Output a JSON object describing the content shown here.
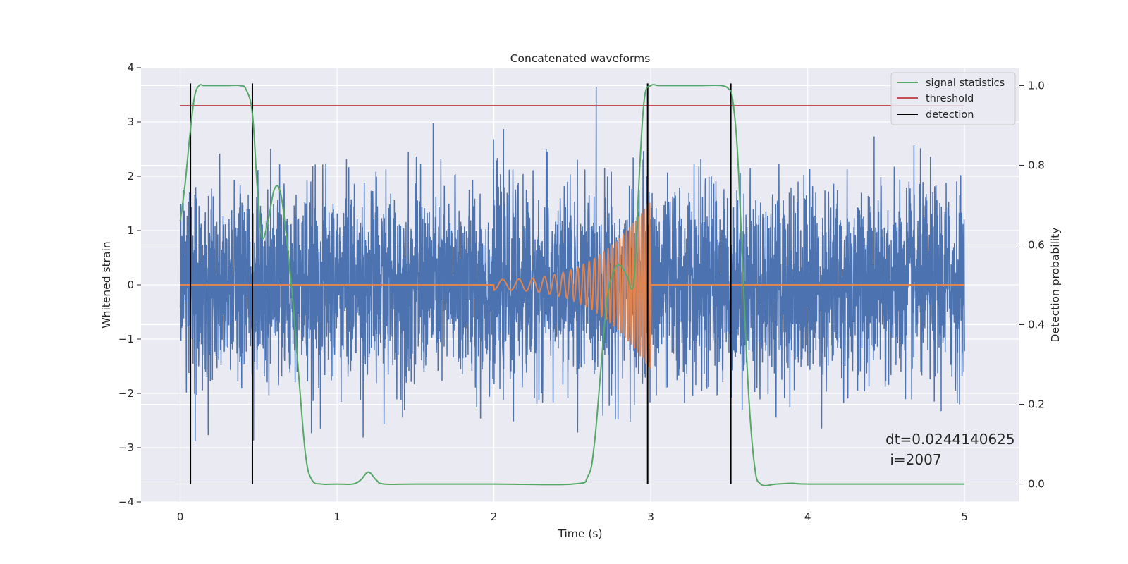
{
  "chart_data": {
    "type": "line",
    "title": "Concatenated waveforms",
    "xlabel": "Time (s)",
    "ylabel": "Whitened strain",
    "y2label": "Detection probability",
    "xlim": [
      -0.25,
      5.35
    ],
    "ylim": [
      -4.0,
      4.0
    ],
    "y2lim": [
      -0.045,
      1.045
    ],
    "xticks": [
      0,
      1,
      2,
      3,
      4,
      5
    ],
    "yticks": [
      -4,
      -3,
      -2,
      -1,
      0,
      1,
      2,
      3,
      4
    ],
    "y2ticks": [
      0.0,
      0.2,
      0.4,
      0.6,
      0.8,
      1.0
    ],
    "grid": true,
    "legend_position": "top-right",
    "legend": [
      {
        "label": "signal statistics",
        "color": "#55a868"
      },
      {
        "label": "threshold",
        "color": "#c44e52"
      },
      {
        "label": "detection",
        "color": "#000000"
      }
    ],
    "series": [
      {
        "kind": "noise",
        "axis": "left",
        "color": "#4c72b0",
        "x_range": [
          0,
          5
        ],
        "std": 0.9,
        "max": 3.65,
        "min": -3.7
      },
      {
        "kind": "chirp",
        "axis": "left",
        "color": "#dd8452",
        "x_range": [
          0,
          5
        ],
        "chirp_start": 2.0,
        "chirp_end": 3.0,
        "start_amplitude": 0.1,
        "peak_amplitude": 1.6
      },
      {
        "name": "signal statistics",
        "axis": "right",
        "color": "#55a868",
        "x": [
          0.0,
          0.03,
          0.06,
          0.09,
          0.12,
          0.15,
          0.2,
          0.3,
          0.38,
          0.42,
          0.46,
          0.49,
          0.52,
          0.56,
          0.6,
          0.64,
          0.68,
          0.72,
          0.76,
          0.8,
          0.84,
          0.9,
          1.0,
          1.1,
          1.15,
          1.2,
          1.25,
          1.3,
          1.5,
          2.0,
          2.5,
          2.6,
          2.64,
          2.68,
          2.72,
          2.76,
          2.8,
          2.85,
          2.88,
          2.9,
          2.93,
          2.96,
          3.0,
          3.05,
          3.1,
          3.3,
          3.45,
          3.5,
          3.52,
          3.55,
          3.58,
          3.62,
          3.66,
          3.7,
          3.8,
          3.9,
          4.0,
          4.5,
          5.0
        ],
        "values": [
          0.66,
          0.75,
          0.87,
          0.97,
          1.0,
          1.0,
          1.0,
          1.0,
          1.0,
          0.99,
          0.93,
          0.75,
          0.62,
          0.66,
          0.74,
          0.73,
          0.61,
          0.45,
          0.25,
          0.07,
          0.01,
          0.0,
          0.0,
          0.0,
          0.01,
          0.03,
          0.01,
          0.0,
          0.0,
          0.0,
          0.0,
          0.02,
          0.1,
          0.28,
          0.46,
          0.53,
          0.55,
          0.52,
          0.49,
          0.55,
          0.8,
          0.97,
          1.0,
          1.0,
          1.0,
          1.0,
          1.0,
          0.99,
          0.97,
          0.85,
          0.6,
          0.25,
          0.05,
          0.0,
          0.0,
          0.002,
          0.0,
          0.0,
          0.0
        ]
      },
      {
        "name": "threshold",
        "axis": "right",
        "color": "#c44e52",
        "x": [
          0,
          5
        ],
        "values": [
          0.95,
          0.95
        ]
      }
    ],
    "detections": {
      "color": "#000000",
      "x": [
        0.065,
        0.46,
        2.98,
        3.51
      ],
      "y_from": 0.0,
      "y_to": 1.0
    },
    "annotation": {
      "line1": "dt=0.0244140625",
      "line2": " i=2007"
    }
  }
}
